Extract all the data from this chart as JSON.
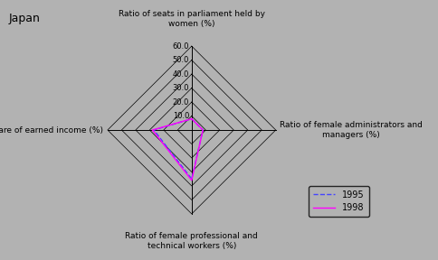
{
  "title": "Japan",
  "background_color": "#b2b2b2",
  "axes_labels": [
    "Ratio of seats in parliament held by\nwomen (%)",
    "Ratio of female administrators and\nmanagers (%)",
    "Ratio of female professional and\ntechnical workers (%)",
    "Women's share of earned income (%)"
  ],
  "max_value": 60,
  "grid_values": [
    10.0,
    20.0,
    30.0,
    40.0,
    50.0,
    60.0
  ],
  "series": [
    {
      "label": "1995",
      "color": "#4444ff",
      "linestyle": "dashed",
      "values": [
        8.0,
        8.0,
        35.0,
        27.0
      ]
    },
    {
      "label": "1998",
      "color": "#ff00ff",
      "linestyle": "solid",
      "values": [
        8.0,
        8.0,
        36.0,
        28.0
      ]
    }
  ],
  "title_fontsize": 9,
  "label_fontsize": 6.5,
  "tick_fontsize": 6
}
